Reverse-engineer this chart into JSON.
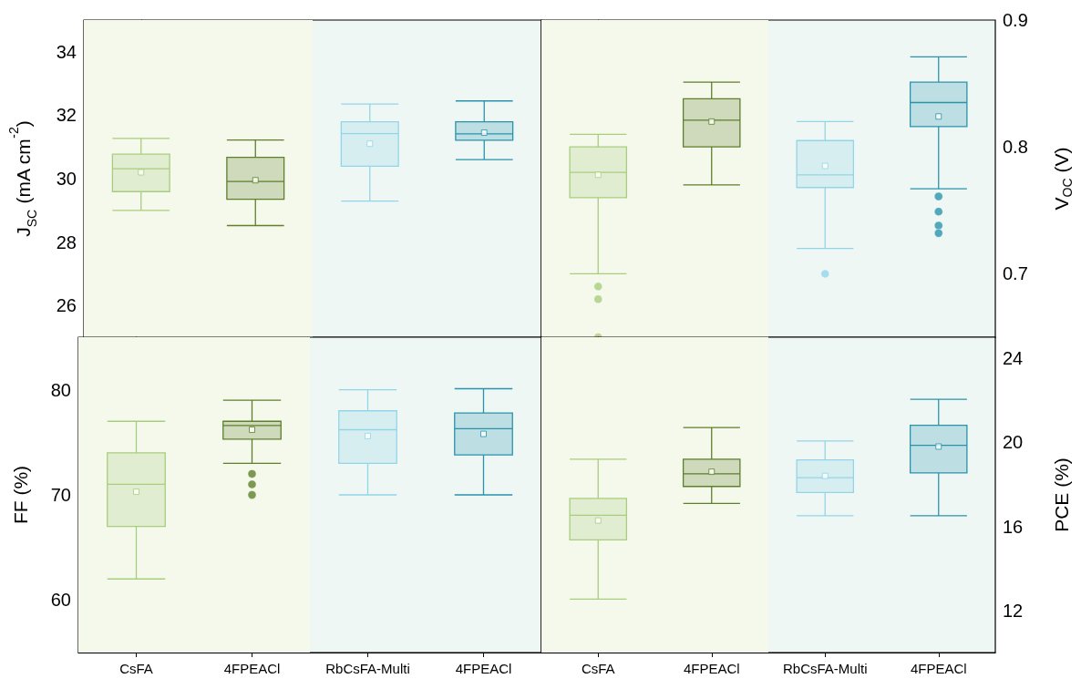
{
  "chart_data": [
    {
      "type": "box",
      "ylabel": "J$_{SC}$ (mA cm$^{-2}$)",
      "categories": [
        "CsFA",
        "4FPEACl",
        "RbCsFA-Multi",
        "4FPEACl"
      ],
      "colors": [
        "#a9cd7e",
        "#5f7f2b",
        "#93d5e8",
        "#2a93ac"
      ],
      "boxes": [
        {
          "low": 29.0,
          "q1": 29.59,
          "median": 30.31,
          "q3": 30.77,
          "high": 31.27,
          "mean": 30.2
        },
        {
          "low": 28.52,
          "q1": 29.35,
          "median": 29.91,
          "q3": 30.67,
          "high": 31.22,
          "mean": 29.95
        },
        {
          "low": 29.29,
          "q1": 30.39,
          "median": 31.42,
          "q3": 31.79,
          "high": 32.35,
          "mean": 31.1
        },
        {
          "low": 30.6,
          "q1": 31.21,
          "median": 31.41,
          "q3": 31.79,
          "high": 32.45,
          "mean": 31.45
        }
      ],
      "ylim": [
        25,
        35
      ],
      "yticks": [
        26,
        28,
        30,
        32,
        34
      ],
      "tick_labels": "y",
      "bands": [
        {
          "axis": "x",
          "from": "CsFA",
          "to": "4FPEACl",
          "color": "#f4f9ec"
        }
      ]
    },
    {
      "type": "box",
      "ylabel": "V$_{OC}$ (V)",
      "categories": [
        "CsFA",
        "4FPEACl",
        "RbCsFA-Multi",
        "4FPEACl"
      ],
      "colors": [
        "#a9cd7e",
        "#5f7f2b",
        "#93d5e8",
        "#2a93ac"
      ],
      "boxes": [
        {
          "low": 0.7,
          "q1": 0.76,
          "median": 0.78,
          "q3": 0.8,
          "high": 0.81,
          "mean": 0.778,
          "outliers": [
            0.69,
            0.68,
            0.65
          ]
        },
        {
          "low": 0.77,
          "q1": 0.8,
          "median": 0.821,
          "q3": 0.838,
          "high": 0.851,
          "mean": 0.82
        },
        {
          "low": 0.72,
          "q1": 0.768,
          "median": 0.778,
          "q3": 0.805,
          "high": 0.82,
          "mean": 0.785,
          "outliers": [
            0.7
          ]
        },
        {
          "low": 0.767,
          "q1": 0.816,
          "median": 0.835,
          "q3": 0.851,
          "high": 0.871,
          "mean": 0.824,
          "outliers": [
            0.761,
            0.749,
            0.738,
            0.732
          ]
        }
      ],
      "ylim": [
        0.65,
        0.9
      ],
      "yticks": [
        0.7,
        0.8,
        0.9
      ],
      "tick_labels": "y",
      "bands": [
        {
          "axis": "x",
          "from": "CsFA",
          "to": "4FPEACl",
          "color": "#f4f9ec"
        }
      ]
    },
    {
      "type": "box",
      "ylabel": "FF (%)",
      "categories": [
        "CsFA",
        "4FPEACl",
        "RbCsFA-Multi",
        "4FPEACl"
      ],
      "colors": [
        "#a9cd7e",
        "#5f7f2b",
        "#93d5e8",
        "#2a93ac"
      ],
      "boxes": [
        {
          "low": 62.0,
          "q1": 67.0,
          "median": 71.0,
          "q3": 74.0,
          "high": 77.0,
          "mean": 70.3
        },
        {
          "low": 73.0,
          "q1": 75.3,
          "median": 76.6,
          "q3": 77.0,
          "high": 79.0,
          "mean": 76.2,
          "outliers": [
            72.0,
            71.0,
            70.0
          ]
        },
        {
          "low": 70.0,
          "q1": 73.0,
          "median": 76.2,
          "q3": 78.0,
          "high": 80.0,
          "mean": 75.6
        },
        {
          "low": 70.0,
          "q1": 73.8,
          "median": 76.3,
          "q3": 77.8,
          "high": 80.1,
          "mean": 75.8
        }
      ],
      "ylim": [
        55,
        85
      ],
      "yticks": [
        60,
        70,
        80
      ],
      "bands": [
        {
          "axis": "x",
          "from": "CsFA",
          "to": "4FPEACl",
          "color": "#f4f9ec"
        }
      ]
    },
    {
      "type": "box",
      "ylabel": "PCE (%)",
      "categories": [
        "CsFA",
        "4FPEACl",
        "RbCsFA-Multi",
        "4FPEACl"
      ],
      "colors": [
        "#a9cd7e",
        "#5f7f2b",
        "#93d5e8",
        "#2a93ac"
      ],
      "boxes": [
        {
          "low": 12.54,
          "q1": 15.36,
          "median": 16.53,
          "q3": 17.33,
          "high": 19.2,
          "mean": 16.28
        },
        {
          "low": 17.09,
          "q1": 17.9,
          "median": 18.5,
          "q3": 19.2,
          "high": 20.7,
          "mean": 18.6
        },
        {
          "low": 16.51,
          "q1": 17.61,
          "median": 18.32,
          "q3": 19.16,
          "high": 20.06,
          "mean": 18.4
        },
        {
          "low": 16.51,
          "q1": 18.55,
          "median": 19.86,
          "q3": 20.81,
          "high": 22.05,
          "mean": 19.8
        }
      ],
      "ylim": [
        10,
        25
      ],
      "yticks": [
        12,
        16,
        20,
        24
      ],
      "bands": [
        {
          "axis": "x",
          "from": "CsFA",
          "to": "4FPEACl",
          "color": "#f4f9ec"
        }
      ]
    }
  ]
}
